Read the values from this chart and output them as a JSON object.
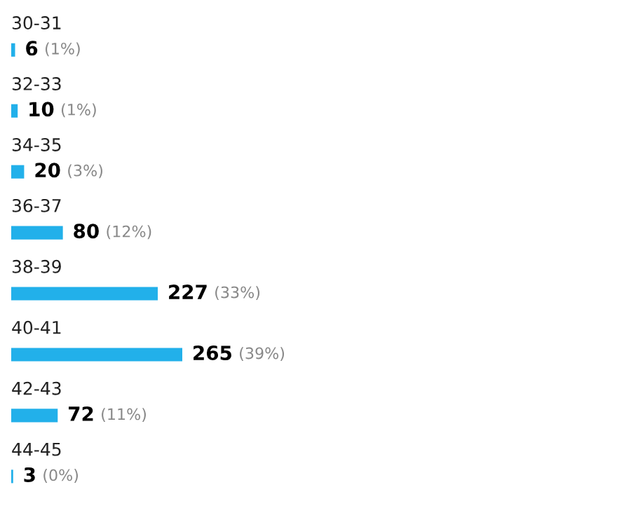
{
  "chart_data": {
    "type": "bar",
    "orientation": "horizontal",
    "categories": [
      "30-31",
      "32-33",
      "34-35",
      "36-37",
      "38-39",
      "40-41",
      "42-43",
      "44-45"
    ],
    "values": [
      6,
      10,
      20,
      80,
      227,
      265,
      72,
      3
    ],
    "value_labels": [
      "6 (1%)",
      "10 (1%)",
      "20 (3%)",
      "80 (12%)",
      "227 (33%)",
      "265 (39%)",
      "72 (11%)",
      "3 (0%)"
    ],
    "color": "#22b0ea"
  }
}
